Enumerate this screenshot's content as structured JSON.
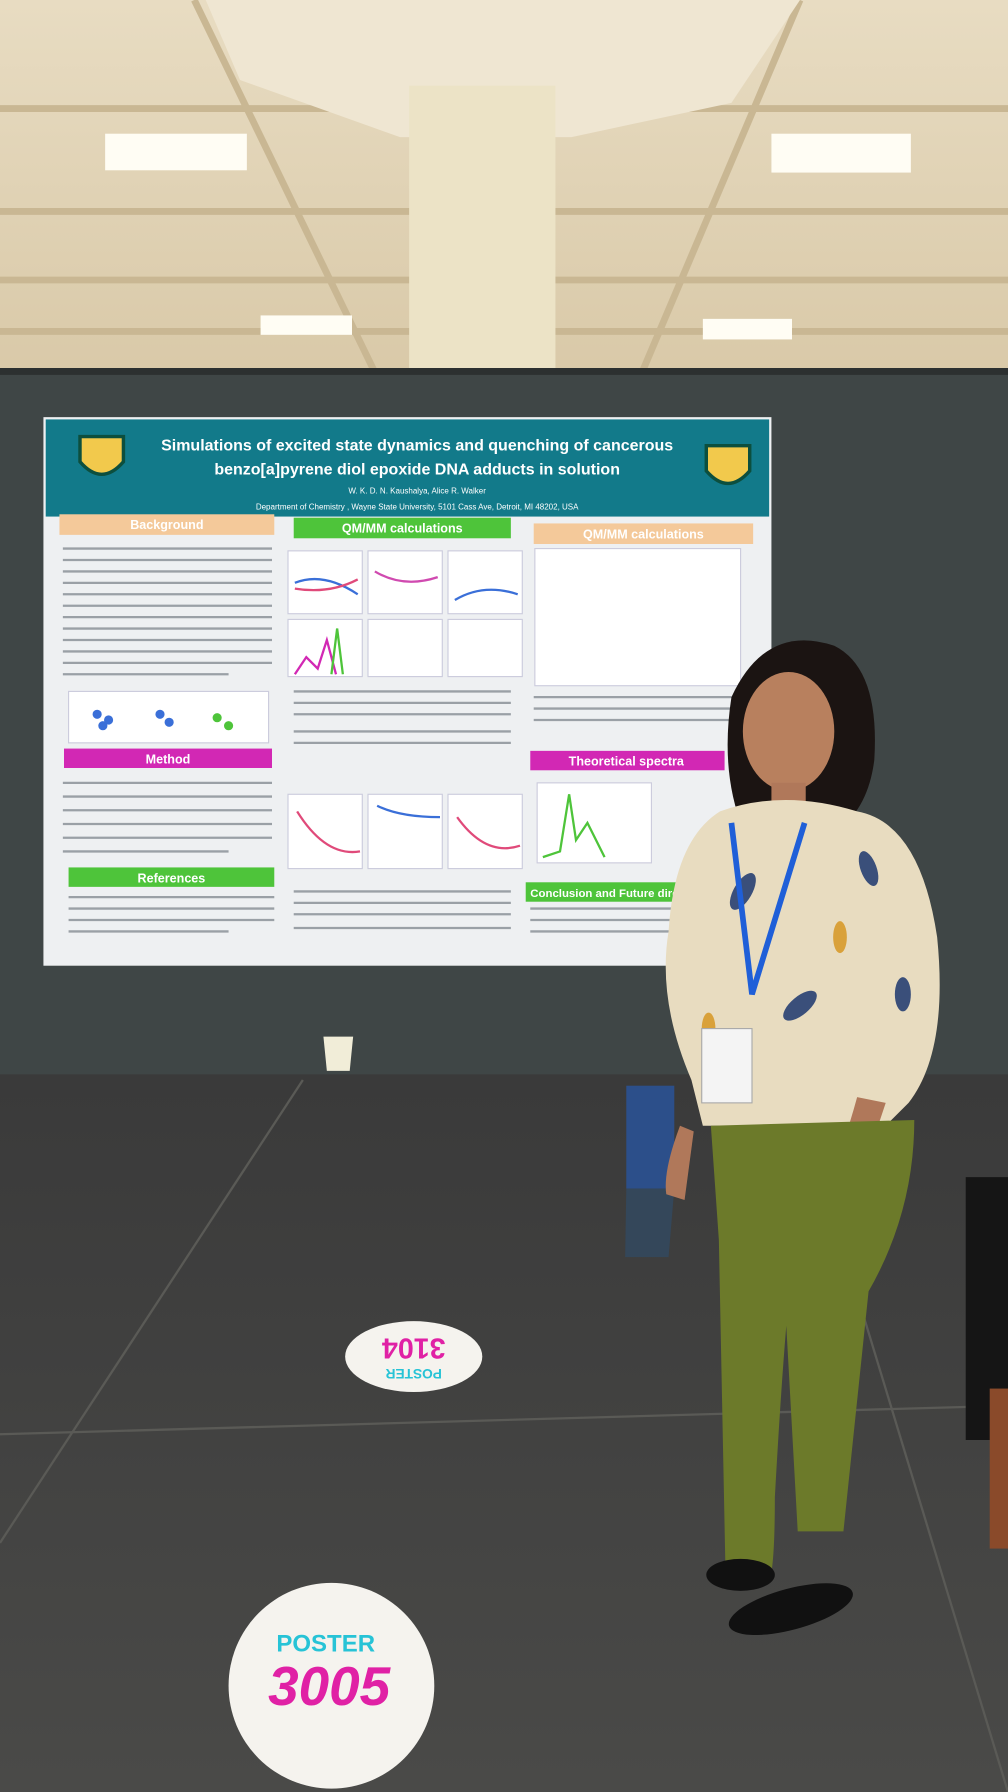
{
  "poster": {
    "title_line1": "Simulations of excited state dynamics and quenching of cancerous",
    "title_line2": "benzo[a]pyrene diol epoxide DNA adducts in solution",
    "authors": "W. K. D. N. Kaushalya, Alice R. Walker",
    "affiliation": "Department of Chemistry , Wayne State University, 5101 Cass Ave, Detroit, MI 48202, USA",
    "sections": [
      "Background",
      "Method",
      "References",
      "QM/MM calculations",
      "QM/MM calculations",
      "Theoretical spectra",
      "Conclusion and Future dire"
    ]
  },
  "floor_stickers": [
    {
      "label": "POSTER",
      "number": "3005"
    },
    {
      "label": "POSTER",
      "number": "3104"
    }
  ]
}
